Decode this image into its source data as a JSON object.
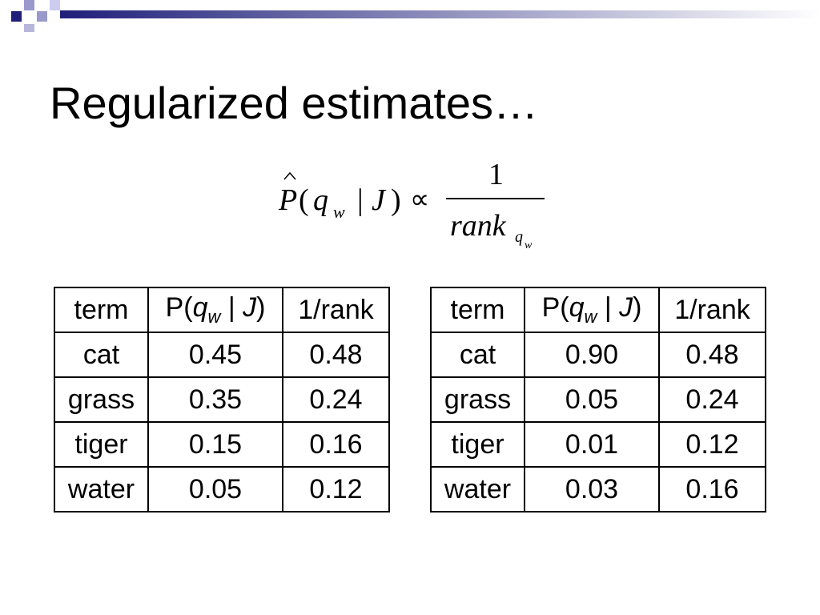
{
  "title": "Regularized estimates…",
  "formula": {
    "lhs": [
      "P",
      "(",
      "q",
      "w",
      "|",
      "J",
      ")"
    ],
    "relation": "∝",
    "numerator": "1",
    "denominator": "rank",
    "denominator_sub": [
      "q",
      "w"
    ]
  },
  "tables": [
    {
      "header": [
        "term",
        [
          "P(",
          "q",
          "w",
          " | ",
          "J",
          ")"
        ],
        "1/rank"
      ],
      "rows": [
        [
          "cat",
          "0.45",
          "0.48"
        ],
        [
          "grass",
          "0.35",
          "0.24"
        ],
        [
          "tiger",
          "0.15",
          "0.16"
        ],
        [
          "water",
          "0.05",
          "0.12"
        ]
      ]
    },
    {
      "header": [
        "term",
        [
          "P(",
          "q",
          "w",
          " | ",
          "J",
          ")"
        ],
        "1/rank"
      ],
      "rows": [
        [
          "cat",
          "0.90",
          "0.48"
        ],
        [
          "grass",
          "0.05",
          "0.24"
        ],
        [
          "tiger",
          "0.01",
          "0.12"
        ],
        [
          "water",
          "0.03",
          "0.16"
        ]
      ]
    }
  ]
}
